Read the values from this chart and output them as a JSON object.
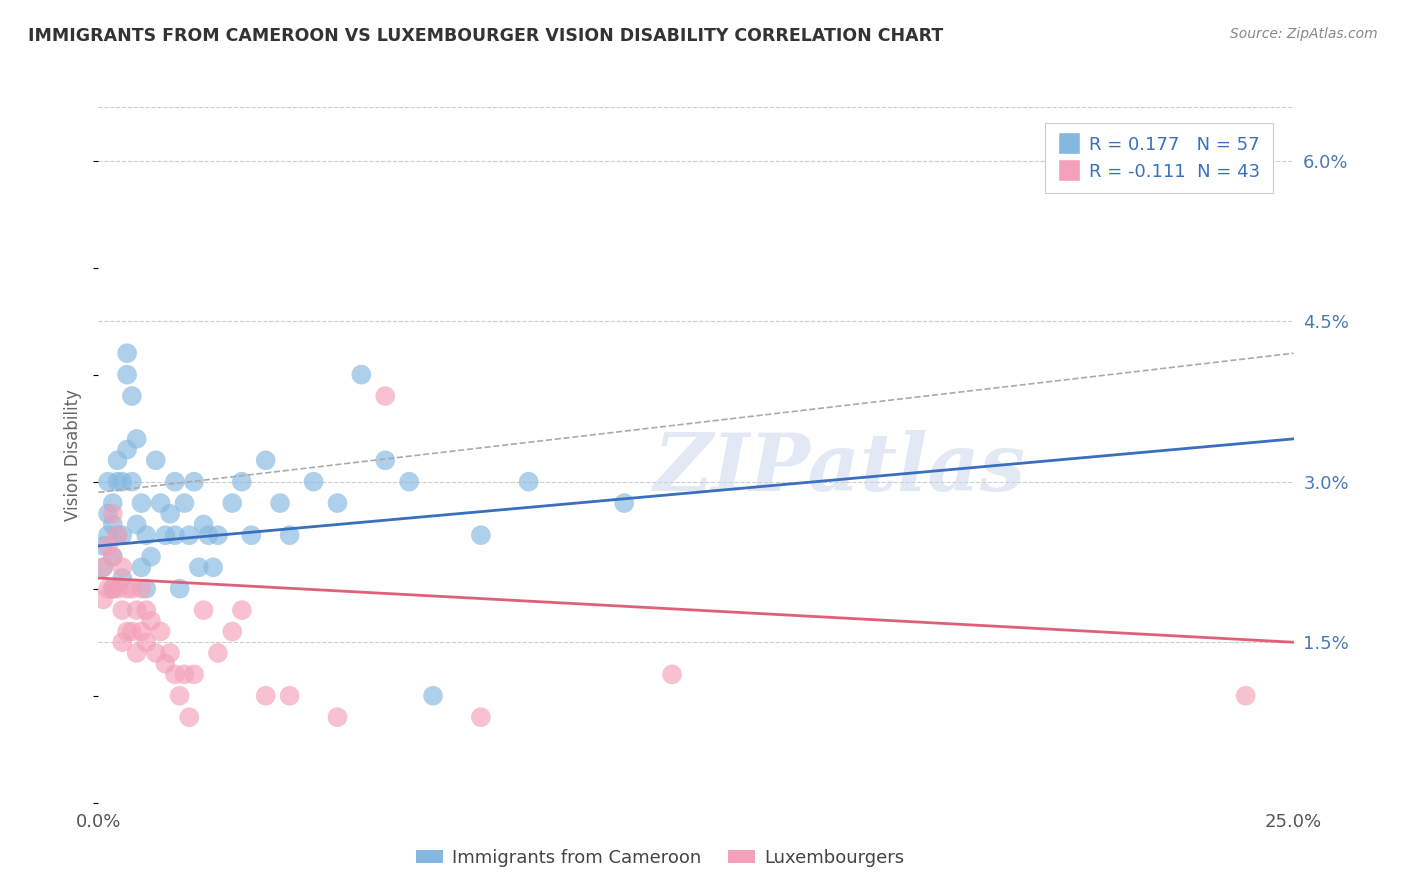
{
  "title": "IMMIGRANTS FROM CAMEROON VS LUXEMBOURGER VISION DISABILITY CORRELATION CHART",
  "source": "Source: ZipAtlas.com",
  "ylabel": "Vision Disability",
  "xlim": [
    0.0,
    0.25
  ],
  "ylim": [
    0.0,
    0.065
  ],
  "ytick_labels": [
    "1.5%",
    "3.0%",
    "4.5%",
    "6.0%"
  ],
  "ytick_positions": [
    0.015,
    0.03,
    0.045,
    0.06
  ],
  "blue_R": 0.177,
  "blue_N": 57,
  "pink_R": -0.111,
  "pink_N": 43,
  "blue_color": "#85b8e0",
  "pink_color": "#f4a0b8",
  "blue_line_color": "#3a6fc0",
  "pink_line_color": "#e0607a",
  "legend_label_blue": "Immigrants from Cameroon",
  "legend_label_pink": "Luxembourgers",
  "watermark": "ZIPatlas",
  "blue_trend_x0": 0.0,
  "blue_trend_y0": 0.024,
  "blue_trend_x1": 0.25,
  "blue_trend_y1": 0.034,
  "blue_trend_x1_dash": 0.25,
  "blue_trend_y1_dash": 0.038,
  "pink_trend_x0": 0.0,
  "pink_trend_y0": 0.021,
  "pink_trend_x1": 0.25,
  "pink_trend_y1": 0.015,
  "blue_scatter_x": [
    0.001,
    0.001,
    0.002,
    0.002,
    0.002,
    0.003,
    0.003,
    0.003,
    0.003,
    0.004,
    0.004,
    0.004,
    0.005,
    0.005,
    0.005,
    0.006,
    0.006,
    0.006,
    0.007,
    0.007,
    0.008,
    0.008,
    0.009,
    0.009,
    0.01,
    0.01,
    0.011,
    0.012,
    0.013,
    0.014,
    0.015,
    0.016,
    0.016,
    0.017,
    0.018,
    0.019,
    0.02,
    0.021,
    0.022,
    0.023,
    0.024,
    0.025,
    0.028,
    0.03,
    0.032,
    0.035,
    0.038,
    0.04,
    0.045,
    0.05,
    0.055,
    0.06,
    0.065,
    0.07,
    0.08,
    0.09,
    0.11
  ],
  "blue_scatter_y": [
    0.024,
    0.022,
    0.03,
    0.027,
    0.025,
    0.028,
    0.026,
    0.023,
    0.02,
    0.032,
    0.03,
    0.025,
    0.03,
    0.025,
    0.021,
    0.042,
    0.04,
    0.033,
    0.038,
    0.03,
    0.034,
    0.026,
    0.028,
    0.022,
    0.025,
    0.02,
    0.023,
    0.032,
    0.028,
    0.025,
    0.027,
    0.03,
    0.025,
    0.02,
    0.028,
    0.025,
    0.03,
    0.022,
    0.026,
    0.025,
    0.022,
    0.025,
    0.028,
    0.03,
    0.025,
    0.032,
    0.028,
    0.025,
    0.03,
    0.028,
    0.04,
    0.032,
    0.03,
    0.01,
    0.025,
    0.03,
    0.028
  ],
  "pink_scatter_x": [
    0.001,
    0.001,
    0.002,
    0.002,
    0.003,
    0.003,
    0.003,
    0.004,
    0.004,
    0.005,
    0.005,
    0.005,
    0.006,
    0.006,
    0.007,
    0.007,
    0.008,
    0.008,
    0.009,
    0.009,
    0.01,
    0.01,
    0.011,
    0.012,
    0.013,
    0.014,
    0.015,
    0.016,
    0.017,
    0.018,
    0.019,
    0.02,
    0.022,
    0.025,
    0.028,
    0.03,
    0.035,
    0.04,
    0.05,
    0.06,
    0.08,
    0.12,
    0.24
  ],
  "pink_scatter_y": [
    0.022,
    0.019,
    0.024,
    0.02,
    0.027,
    0.023,
    0.02,
    0.025,
    0.02,
    0.022,
    0.018,
    0.015,
    0.02,
    0.016,
    0.02,
    0.016,
    0.018,
    0.014,
    0.02,
    0.016,
    0.018,
    0.015,
    0.017,
    0.014,
    0.016,
    0.013,
    0.014,
    0.012,
    0.01,
    0.012,
    0.008,
    0.012,
    0.018,
    0.014,
    0.016,
    0.018,
    0.01,
    0.01,
    0.008,
    0.038,
    0.008,
    0.012,
    0.01
  ]
}
